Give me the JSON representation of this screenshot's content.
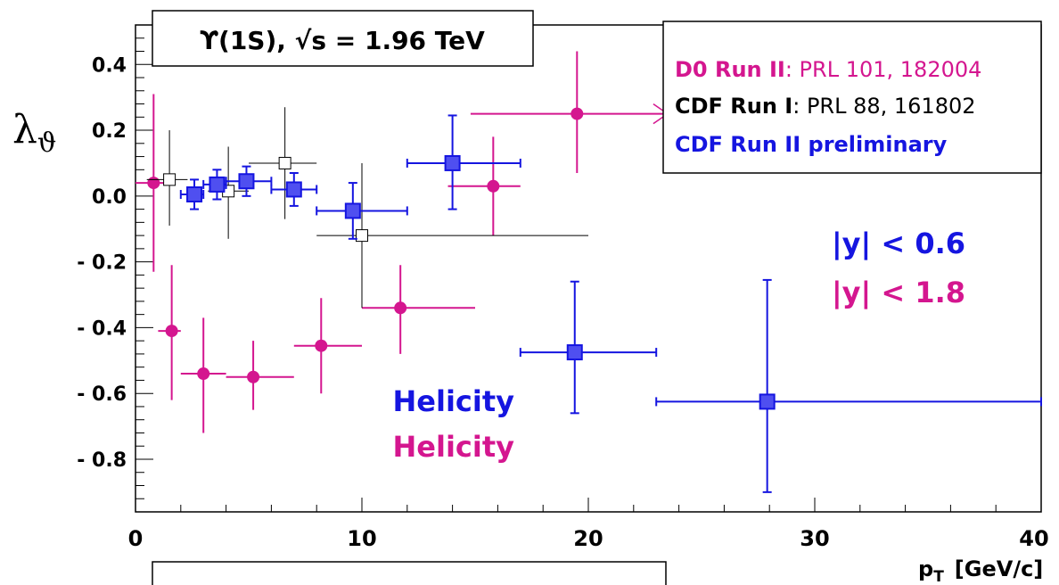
{
  "chart_data": {
    "type": "scatter",
    "title": "ϒ(1S), √s = 1.96 TeV",
    "xlabel": "p",
    "xlabel_sub": "T",
    "xlabel_unit": "[GeV/c]",
    "ylabel": "λ",
    "ylabel_sub": "ϑ",
    "xlim": [
      0,
      40
    ],
    "ylim": [
      -0.96,
      0.52
    ],
    "xticks": [
      {
        "value": 0,
        "label": "0"
      },
      {
        "value": 10,
        "label": "10"
      },
      {
        "value": 20,
        "label": "20"
      },
      {
        "value": 30,
        "label": "30"
      },
      {
        "value": 40,
        "label": "40"
      }
    ],
    "yticks": [
      {
        "value": 0.4,
        "label": "0.4"
      },
      {
        "value": 0.2,
        "label": "0.2"
      },
      {
        "value": 0.0,
        "label": "0.0"
      },
      {
        "value": -0.2,
        "label": "- 0.2"
      },
      {
        "value": -0.4,
        "label": "- 0.4"
      },
      {
        "value": -0.6,
        "label": "- 0.6"
      },
      {
        "value": -0.8,
        "label": "- 0.8"
      }
    ],
    "grid": false,
    "legend_position": "top-right",
    "legend": [
      {
        "name": "D0 Run II",
        "ref": ": PRL 101, 182004",
        "color": "#d4168f"
      },
      {
        "name": "CDF Run I",
        "ref": ": PRL 88, 161802",
        "color": "#000000"
      },
      {
        "name": "CDF Run II preliminary",
        "ref": "",
        "color": "#1515e0"
      }
    ],
    "annotations": [
      {
        "text": "|y| < 0.6",
        "color": "#1515e0"
      },
      {
        "text": "|y| < 1.8",
        "color": "#d4168f"
      },
      {
        "text": "Helicity",
        "color": "#1515e0"
      },
      {
        "text": "Helicity",
        "color": "#d4168f"
      }
    ],
    "series": [
      {
        "name": "D0 Run II",
        "color": "#d4168f",
        "marker": "circle",
        "points": [
          {
            "x": 0.8,
            "y": 0.04,
            "xlo": 0.0,
            "xhi": 1.5,
            "ylo": -0.23,
            "yhi": 0.31
          },
          {
            "x": 1.6,
            "y": -0.41,
            "xlo": 1.0,
            "xhi": 2.0,
            "ylo": -0.62,
            "yhi": -0.21
          },
          {
            "x": 3.0,
            "y": -0.54,
            "xlo": 2.0,
            "xhi": 4.0,
            "ylo": -0.72,
            "yhi": -0.37
          },
          {
            "x": 5.2,
            "y": -0.55,
            "xlo": 4.0,
            "xhi": 7.0,
            "ylo": -0.65,
            "yhi": -0.44
          },
          {
            "x": 8.2,
            "y": -0.455,
            "xlo": 7.0,
            "xhi": 10.0,
            "ylo": -0.6,
            "yhi": -0.31
          },
          {
            "x": 11.7,
            "y": -0.34,
            "xlo": 10.0,
            "xhi": 15.0,
            "ylo": -0.48,
            "yhi": -0.21
          },
          {
            "x": 15.8,
            "y": 0.03,
            "xlo": 13.8,
            "xhi": 17.0,
            "ylo": -0.12,
            "yhi": 0.18
          },
          {
            "x": 19.5,
            "y": 0.25,
            "xlo": 14.8,
            "xhi": 23.5,
            "ylo": 0.07,
            "yhi": 0.44,
            "arrow": true
          }
        ]
      },
      {
        "name": "CDF Run I",
        "color": "#000000",
        "marker": "open-square",
        "points": [
          {
            "x": 1.5,
            "y": 0.05,
            "xlo": 0.5,
            "xhi": 2.3,
            "ylo": -0.09,
            "yhi": 0.2
          },
          {
            "x": 4.1,
            "y": 0.015,
            "xlo": 3.2,
            "xhi": 5.0,
            "ylo": -0.13,
            "yhi": 0.15
          },
          {
            "x": 6.6,
            "y": 0.1,
            "xlo": 5.0,
            "xhi": 8.0,
            "ylo": -0.07,
            "yhi": 0.27
          },
          {
            "x": 10.0,
            "y": -0.12,
            "xlo": 8.0,
            "xhi": 20.0,
            "ylo": -0.34,
            "yhi": 0.1
          }
        ]
      },
      {
        "name": "CDF Run II preliminary",
        "color": "#1515e0",
        "marker": "square",
        "points": [
          {
            "x": 2.6,
            "y": 0.005,
            "xlo": 2.0,
            "xhi": 3.0,
            "ylo": -0.04,
            "yhi": 0.05
          },
          {
            "x": 3.6,
            "y": 0.035,
            "xlo": 3.0,
            "xhi": 4.0,
            "ylo": -0.01,
            "yhi": 0.08
          },
          {
            "x": 4.9,
            "y": 0.045,
            "xlo": 4.0,
            "xhi": 6.0,
            "ylo": 0.0,
            "yhi": 0.09
          },
          {
            "x": 7.0,
            "y": 0.02,
            "xlo": 6.0,
            "xhi": 8.0,
            "ylo": -0.03,
            "yhi": 0.07
          },
          {
            "x": 9.6,
            "y": -0.045,
            "xlo": 8.0,
            "xhi": 12.0,
            "ylo": -0.13,
            "yhi": 0.04
          },
          {
            "x": 14.0,
            "y": 0.1,
            "xlo": 12.0,
            "xhi": 17.0,
            "ylo": -0.04,
            "yhi": 0.245
          },
          {
            "x": 19.4,
            "y": -0.475,
            "xlo": 17.0,
            "xhi": 23.0,
            "ylo": -0.66,
            "yhi": -0.26
          },
          {
            "x": 27.9,
            "y": -0.625,
            "xlo": 23.0,
            "xhi": 40.0,
            "ylo": -0.9,
            "yhi": -0.255
          }
        ]
      }
    ]
  }
}
